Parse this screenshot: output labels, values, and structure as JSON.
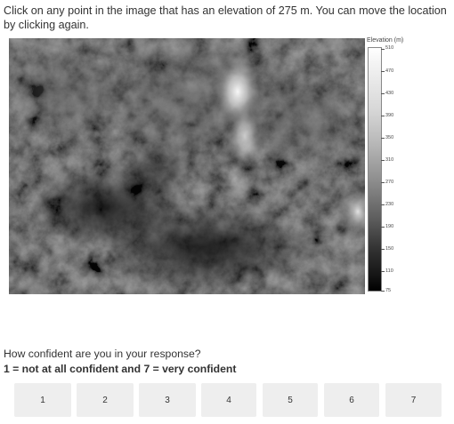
{
  "prompt": {
    "instruction": "Click on any point in the image that has an elevation of 275 m. You can move the location by clicking again."
  },
  "legend": {
    "title": "Elevation (m)",
    "labels": [
      "510",
      "470",
      "430",
      "390",
      "350",
      "310",
      "270",
      "230",
      "190",
      "150",
      "110",
      "75"
    ]
  },
  "confidence": {
    "question": "How confident are you in your response?",
    "scale_note": "1 = not at all confident and 7 = very confident",
    "options": [
      "1",
      "2",
      "3",
      "4",
      "5",
      "6",
      "7"
    ]
  }
}
